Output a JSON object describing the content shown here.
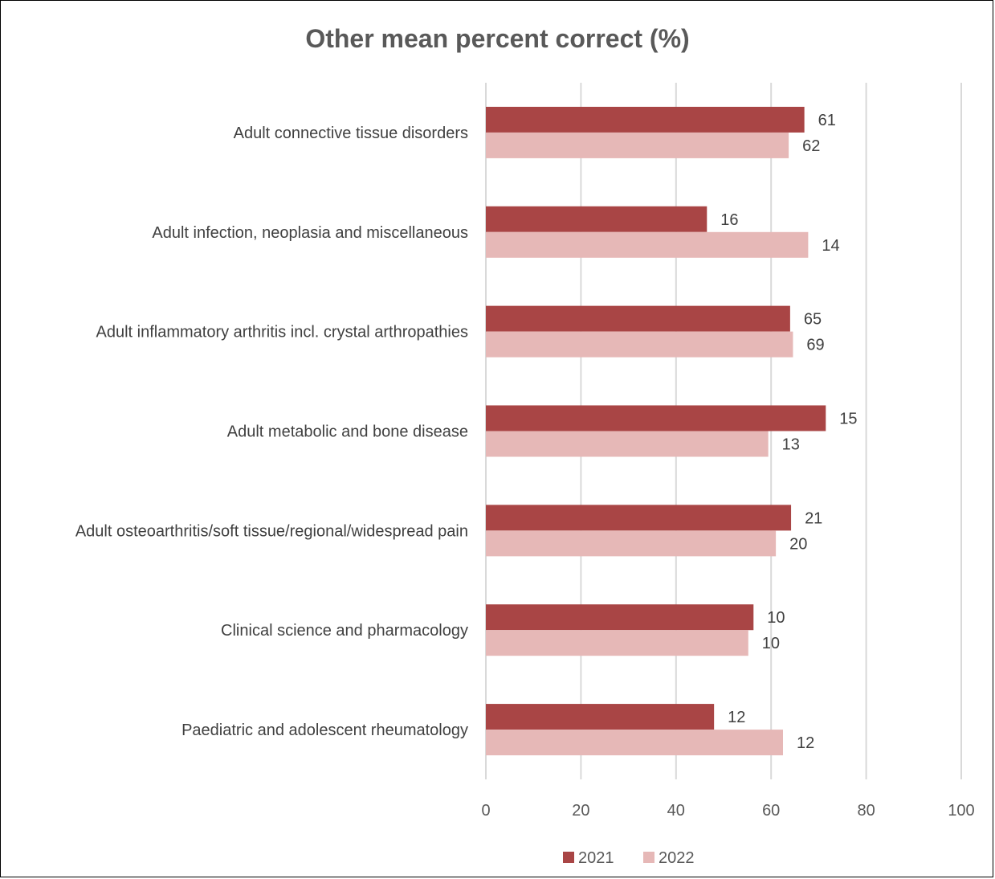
{
  "chart_data": {
    "type": "bar",
    "orientation": "horizontal",
    "title": "Other mean percent correct (%)",
    "xlabel": "",
    "ylabel": "",
    "xlim": [
      0,
      100
    ],
    "ticks": [
      "0",
      "20",
      "40",
      "60",
      "80",
      "100"
    ],
    "grid": true,
    "legend_position": "bottom",
    "categories": [
      "Adult connective tissue disorders",
      "Adult infection, neoplasia and miscellaneous",
      "Adult inflammatory arthritis incl. crystal arthropathies",
      "Adult metabolic and bone disease",
      "Adult osteoarthritis/soft tissue/regional/widespread pain",
      "Clinical science and pharmacology",
      "Paediatric and adolescent rheumatology"
    ],
    "series": [
      {
        "name": "2021",
        "color": "#A94545",
        "values": [
          67,
          46.5,
          64,
          71.5,
          64.2,
          56.3,
          48
        ],
        "labels": [
          "61",
          "16",
          "65",
          "15",
          "21",
          "10",
          "12"
        ]
      },
      {
        "name": "2022",
        "color": "#E6B8B7",
        "values": [
          63.7,
          67.8,
          64.6,
          59.4,
          61,
          55.2,
          62.5
        ],
        "labels": [
          "62",
          "14",
          "69",
          "13",
          "20",
          "10",
          "12"
        ]
      }
    ]
  }
}
